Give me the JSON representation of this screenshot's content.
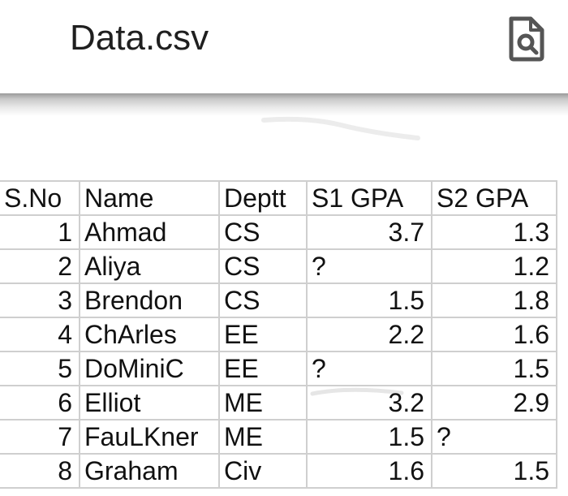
{
  "header": {
    "file_title": "Data.csv",
    "action_icon": "document-search-icon"
  },
  "table": {
    "columns": [
      "S.No",
      "Name",
      "Deptt",
      "S1 GPA",
      "S2 GPA"
    ],
    "rows": [
      {
        "sno": "1",
        "name": "Ahmad",
        "dept": "CS",
        "s1": "3.7",
        "s2": "1.3"
      },
      {
        "sno": "2",
        "name": "Aliya",
        "dept": "CS",
        "s1": "?",
        "s2": "1.2"
      },
      {
        "sno": "3",
        "name": "Brendon",
        "dept": "CS",
        "s1": "1.5",
        "s2": "1.8"
      },
      {
        "sno": "4",
        "name": "ChArles",
        "dept": "EE",
        "s1": "2.2",
        "s2": "1.6"
      },
      {
        "sno": "5",
        "name": "DoMiniC",
        "dept": "EE",
        "s1": "?",
        "s2": "1.5"
      },
      {
        "sno": "6",
        "name": "Elliot",
        "dept": "ME",
        "s1": "3.2",
        "s2": "2.9"
      },
      {
        "sno": "7",
        "name": "FauLKner",
        "dept": "ME",
        "s1": "1.5",
        "s2": "?"
      },
      {
        "sno": "8",
        "name": "Graham",
        "dept": "Civ",
        "s1": "1.6",
        "s2": "1.5"
      }
    ]
  },
  "colors": {
    "text": "#111111",
    "grid": "#cfcfcf",
    "icon": "#555555"
  }
}
